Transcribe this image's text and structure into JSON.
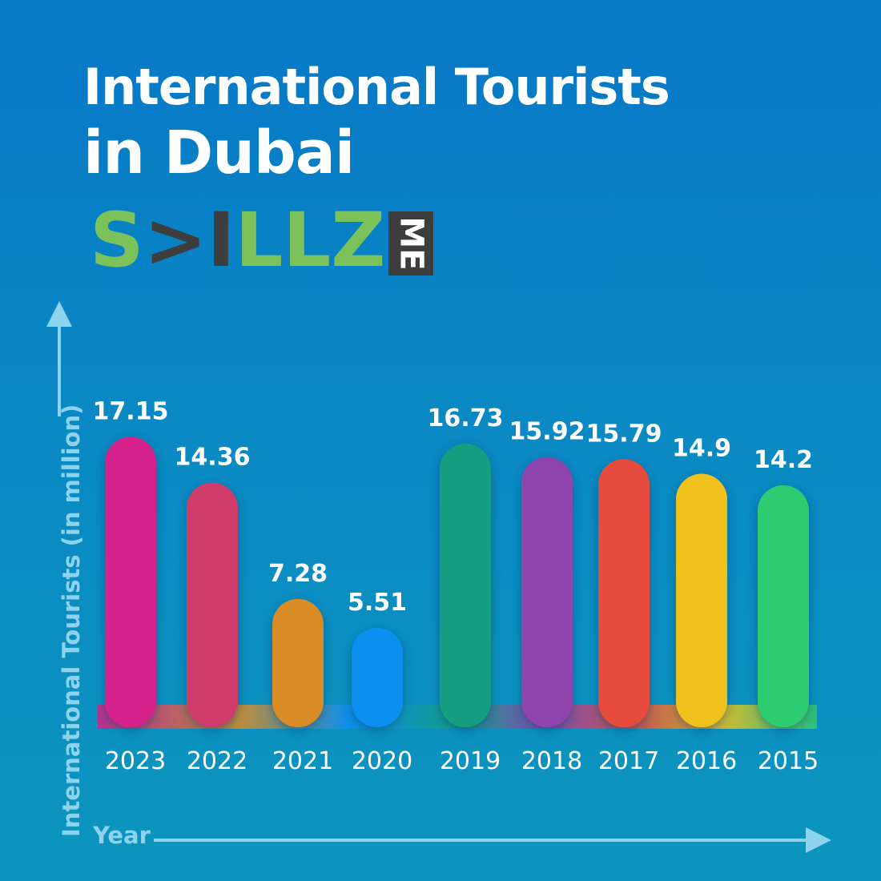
{
  "title_line1": "International Tourists",
  "title_line2": "in Dubai",
  "logo": {
    "text": "SKILLZ",
    "suffix": "ME",
    "colors": {
      "green": "#7cc25a",
      "dark": "#3d3d3d"
    }
  },
  "chart_data": {
    "type": "bar",
    "title": "International Tourists in Dubai",
    "xlabel": "Year",
    "ylabel": "International Tourists (in million)",
    "categories": [
      "2023",
      "2022",
      "2021",
      "2020",
      "2019",
      "2018",
      "2017",
      "2016",
      "2015"
    ],
    "values": [
      17.15,
      14.36,
      7.28,
      5.51,
      16.73,
      15.92,
      15.79,
      14.9,
      14.2
    ],
    "value_labels": [
      "17.15",
      "14.36",
      "7.28",
      "5.51",
      "16.73",
      "15.92",
      "15.79",
      "14.9",
      "14.2"
    ],
    "colors": [
      "#d4208a",
      "#cf3b6b",
      "#d98c25",
      "#0d8ff2",
      "#169e80",
      "#8e44ad",
      "#e74c3c",
      "#f0c11a",
      "#2ecc71"
    ],
    "grid": false,
    "legend": "none"
  }
}
